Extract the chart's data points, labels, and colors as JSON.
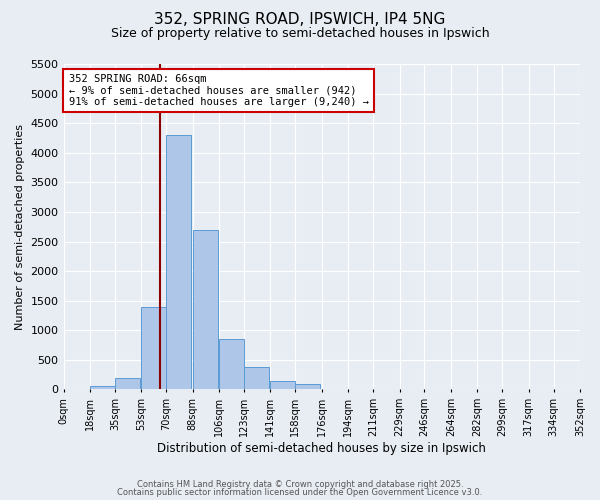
{
  "title1": "352, SPRING ROAD, IPSWICH, IP4 5NG",
  "title2": "Size of property relative to semi-detached houses in Ipswich",
  "xlabel": "Distribution of semi-detached houses by size in Ipswich",
  "ylabel": "Number of semi-detached properties",
  "bin_starts": [
    0,
    18,
    35,
    53,
    70,
    88,
    106,
    123,
    141,
    158,
    176,
    194,
    211,
    229,
    246,
    264,
    282,
    299,
    317,
    334
  ],
  "bin_width": 17,
  "bin_heights": [
    0,
    50,
    200,
    1400,
    4300,
    2700,
    850,
    380,
    150,
    100,
    0,
    0,
    0,
    0,
    0,
    0,
    0,
    0,
    0,
    0
  ],
  "bar_color": "#aec6e8",
  "bar_edge_color": "#5b9bd5",
  "background_color": "#e8edf4",
  "grid_color": "#c8d0dc",
  "property_size": 66,
  "property_label": "352 SPRING ROAD: 66sqm",
  "smaller_pct": "9%",
  "smaller_count": "942",
  "larger_pct": "91%",
  "larger_count": "9,240",
  "annotation_box_color": "#ffffff",
  "annotation_box_edge_color": "#cc0000",
  "vline_color": "#8b0000",
  "ylim": [
    0,
    5500
  ],
  "xlim_start": 0,
  "xlim_end": 352,
  "tick_labels": [
    "0sqm",
    "18sqm",
    "35sqm",
    "53sqm",
    "70sqm",
    "88sqm",
    "106sqm",
    "123sqm",
    "141sqm",
    "158sqm",
    "176sqm",
    "194sqm",
    "211sqm",
    "229sqm",
    "246sqm",
    "264sqm",
    "282sqm",
    "299sqm",
    "317sqm",
    "334sqm",
    "352sqm"
  ],
  "tick_positions": [
    0,
    18,
    35,
    53,
    70,
    88,
    106,
    123,
    141,
    158,
    176,
    194,
    211,
    229,
    246,
    264,
    282,
    299,
    317,
    334,
    352
  ],
  "footer1": "Contains HM Land Registry data © Crown copyright and database right 2025.",
  "footer2": "Contains public sector information licensed under the Open Government Licence v3.0."
}
